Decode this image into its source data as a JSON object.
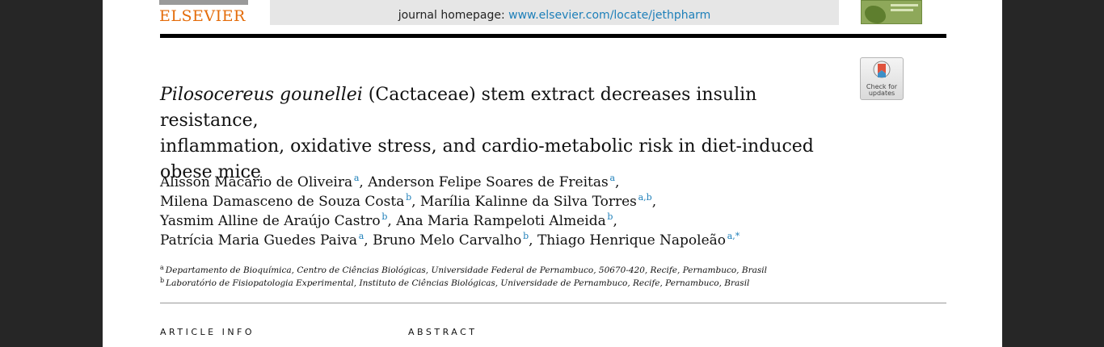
{
  "header": {
    "publisher_logo": "ELSEVIER",
    "homepage_label": "journal homepage:",
    "homepage_url": "www.elsevier.com/locate/jethpharm",
    "crossmark_label_line1": "Check for",
    "crossmark_label_line2": "updates",
    "colors": {
      "accent": "#1d7fb9",
      "logo": "#e46c0a"
    }
  },
  "article": {
    "title_italic": "Pilosocereus gounellei",
    "title_rest_line1": " (Cactaceae) stem extract decreases insulin resistance,",
    "title_line2": "inflammation, oxidative stress, and cardio-metabolic risk in diet-induced",
    "title_line3": "obese mice",
    "authors": [
      {
        "name": "Alisson Macário de Oliveira",
        "aff": "a"
      },
      {
        "name": "Anderson Felipe Soares de Freitas",
        "aff": "a"
      },
      {
        "name": "Milena Damasceno de Souza Costa",
        "aff": "b"
      },
      {
        "name": "Marília Kalinne da Silva Torres",
        "aff": "a,b"
      },
      {
        "name": "Yasmim Alline de Araújo Castro",
        "aff": "b"
      },
      {
        "name": "Ana Maria Rampeloti Almeida",
        "aff": "b"
      },
      {
        "name": "Patrícia Maria Guedes Paiva",
        "aff": "a"
      },
      {
        "name": "Bruno Melo Carvalho",
        "aff": "b"
      },
      {
        "name": "Thiago Henrique Napoleão",
        "aff": "a,*"
      }
    ],
    "affiliations": [
      {
        "key": "a",
        "text": "Departamento de Bioquímica, Centro de Ciências Biológicas, Universidade Federal de Pernambuco, 50670-420, Recife, Pernambuco, Brasil"
      },
      {
        "key": "b",
        "text": "Laboratório de Fisiopatologia Experimental, Instituto de Ciências Biológicas, Universidade de Pernambuco, Recife, Pernambuco, Brasil"
      }
    ]
  },
  "sections": {
    "article_info": "ARTICLE INFO",
    "abstract": "ABSTRACT"
  }
}
